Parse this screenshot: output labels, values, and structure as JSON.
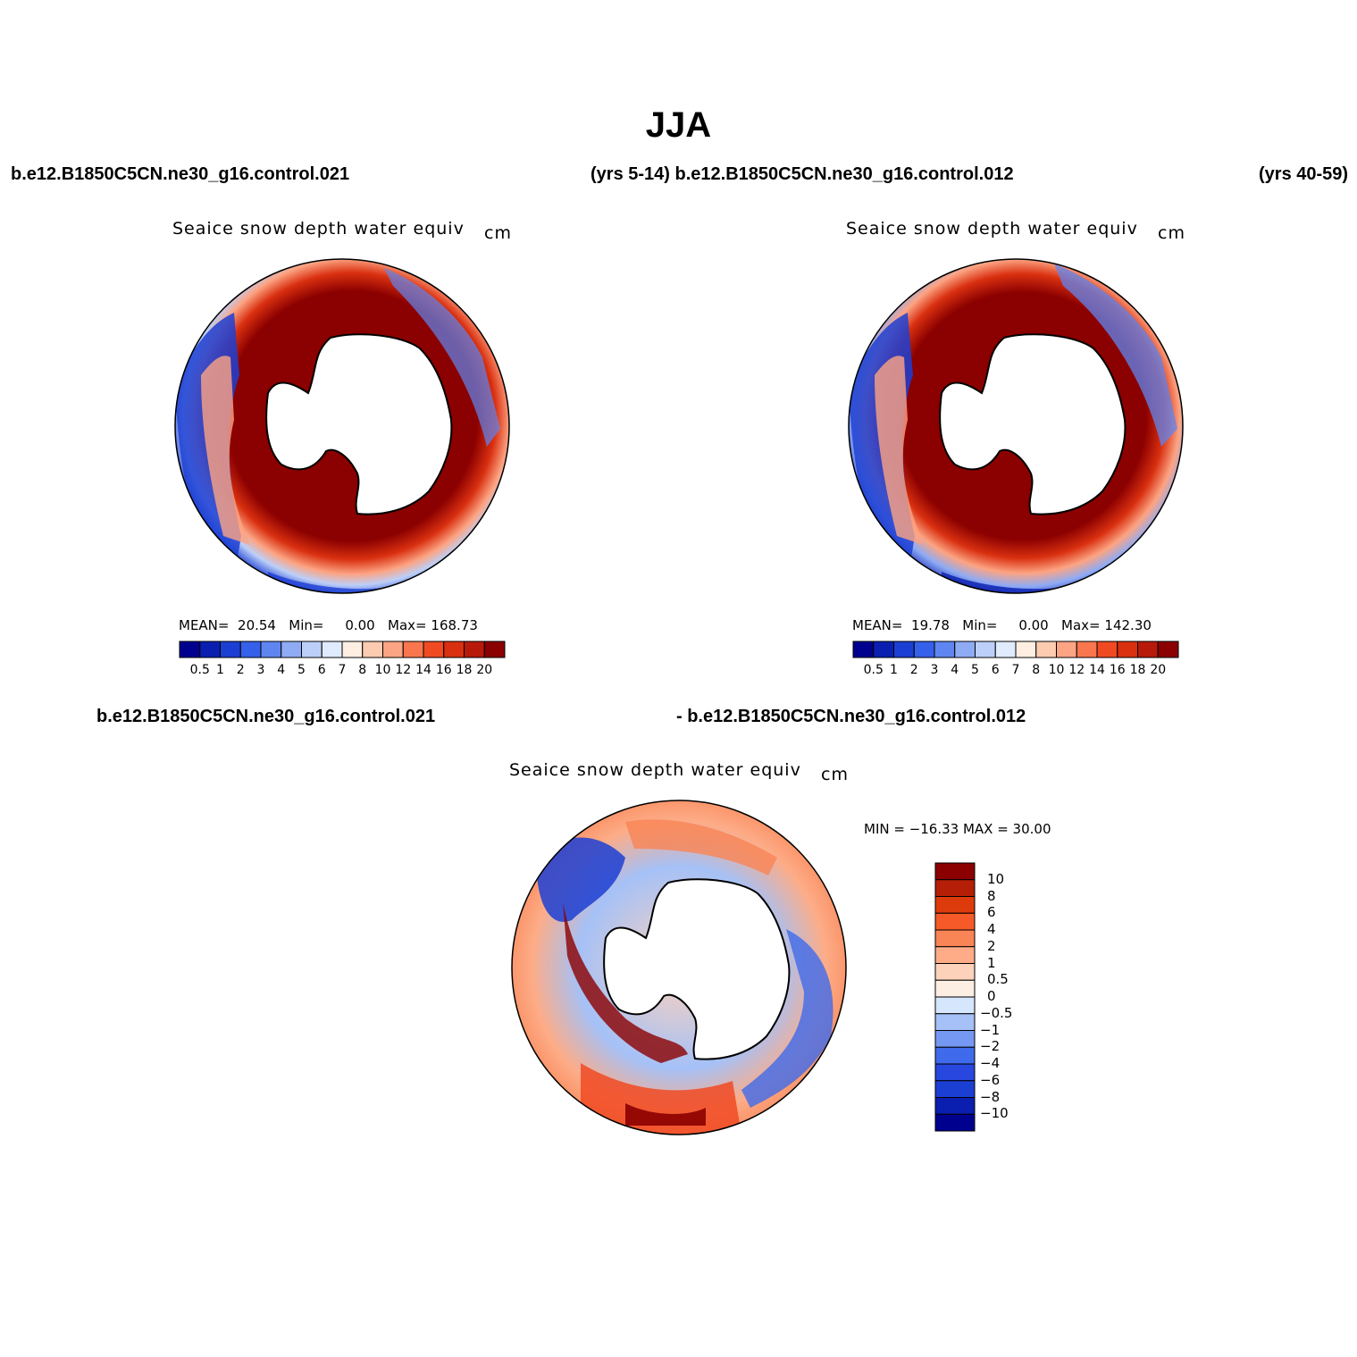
{
  "title": "JJA",
  "header": {
    "case_a": "b.e12.B1850C5CN.ne30_g16.control.021",
    "years_a_case_b": "(yrs 5-14) b.e12.B1850C5CN.ne30_g16.control.012",
    "years_b": "(yrs 40-59)",
    "diff_case_a": "b.e12.B1850C5CN.ne30_g16.control.021",
    "diff_case_b": "- b.e12.B1850C5CN.ne30_g16.control.012"
  },
  "colors": {
    "seq": [
      "#00008f",
      "#0a1fb0",
      "#1c3fd3",
      "#3560ea",
      "#5f86f0",
      "#8fabf4",
      "#bccff8",
      "#e0ebfd",
      "#ffefe2",
      "#fdcbb0",
      "#fca483",
      "#f9764f",
      "#f04a23",
      "#d93010",
      "#b71a0a",
      "#8b0000"
    ],
    "diff": [
      "#00008f",
      "#0a1fb0",
      "#1c3fd3",
      "#2747de",
      "#3f6aeb",
      "#7599f2",
      "#a5c1f7",
      "#d6e7fd",
      "#fdeee3",
      "#fdd2bb",
      "#fdac87",
      "#f98455",
      "#f55a28",
      "#de3b0c",
      "#b51f07",
      "#8b0000"
    ]
  },
  "chart_data": [
    {
      "type": "polar-map",
      "title": "Seaice snow depth water equiv",
      "units": "cm",
      "stats": {
        "mean_label": "MEAN=",
        "mean": "20.54",
        "min_label": "Min=",
        "min": "0.00",
        "max_label": "Max=",
        "max": "168.73"
      },
      "colorbar_ticks": [
        "0.5",
        "1",
        "2",
        "3",
        "4",
        "5",
        "6",
        "7",
        "8",
        "10",
        "12",
        "14",
        "16",
        "18",
        "20"
      ]
    },
    {
      "type": "polar-map",
      "title": "Seaice snow depth water equiv",
      "units": "cm",
      "stats": {
        "mean_label": "MEAN=",
        "mean": "19.78",
        "min_label": "Min=",
        "min": "0.00",
        "max_label": "Max=",
        "max": "142.30"
      },
      "colorbar_ticks": [
        "0.5",
        "1",
        "2",
        "3",
        "4",
        "5",
        "6",
        "7",
        "8",
        "10",
        "12",
        "14",
        "16",
        "18",
        "20"
      ]
    },
    {
      "type": "polar-map-difference",
      "title": "Seaice snow depth water equiv",
      "units": "cm",
      "minmax": "MIN = −16.33  MAX =   30.00",
      "colorbar_ticks": [
        "10",
        "8",
        "6",
        "4",
        "2",
        "1",
        "0.5",
        "0",
        "−0.5",
        "−1",
        "−2",
        "−4",
        "−6",
        "−8",
        "−10"
      ]
    }
  ]
}
